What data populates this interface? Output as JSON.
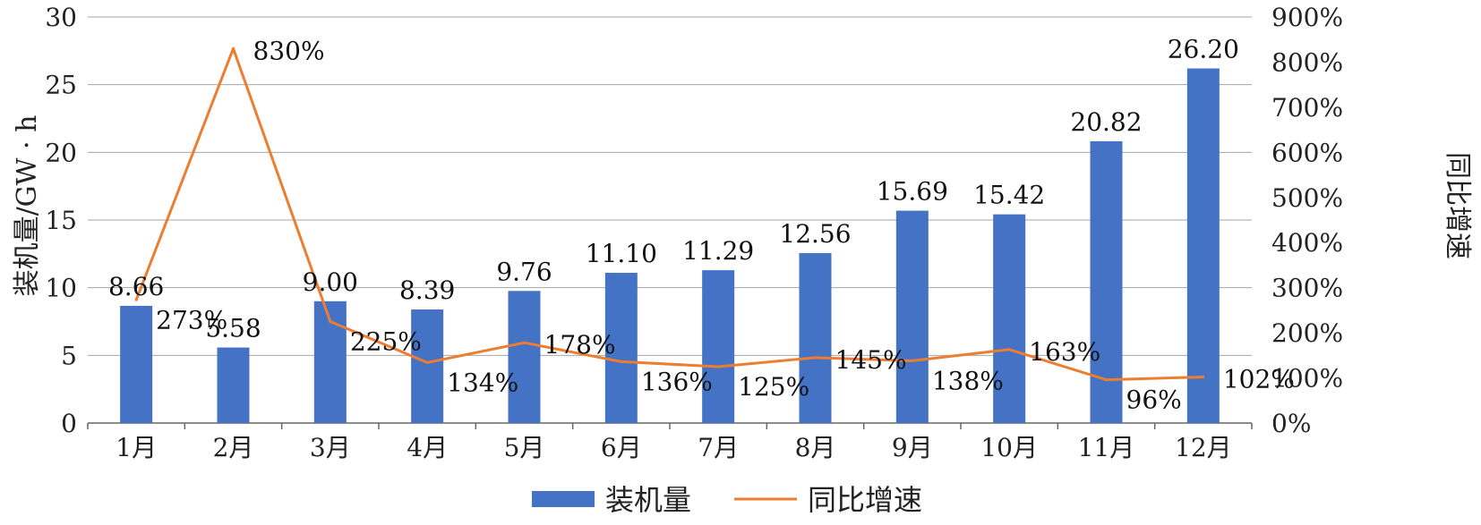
{
  "chart_data": {
    "type": "bar",
    "categories": [
      "1月",
      "2月",
      "3月",
      "4月",
      "5月",
      "6月",
      "7月",
      "8月",
      "9月",
      "10月",
      "11月",
      "12月"
    ],
    "series": [
      {
        "name": "装机量",
        "type": "bar",
        "axis": "left",
        "color": "#4472C4",
        "values": [
          8.66,
          5.58,
          9.0,
          8.39,
          9.76,
          11.1,
          11.29,
          12.56,
          15.69,
          15.42,
          20.82,
          26.2
        ],
        "labels": [
          "8.66",
          "5.58",
          "9.00",
          "8.39",
          "9.76",
          "11.10",
          "11.29",
          "12.56",
          "15.69",
          "15.42",
          "20.82",
          "26.20"
        ]
      },
      {
        "name": "同比增速",
        "type": "line",
        "axis": "right",
        "color": "#ED7D31",
        "values": [
          273,
          830,
          225,
          134,
          178,
          136,
          125,
          145,
          138,
          163,
          96,
          102
        ],
        "labels": [
          "273%",
          "830%",
          "225%",
          "134%",
          "178%",
          "136%",
          "125%",
          "145%",
          "138%",
          "163%",
          "96%",
          "102%"
        ]
      }
    ],
    "ylabel": "装机量/GW · h",
    "ylabel_right": "同比增速",
    "ylim": [
      0,
      30
    ],
    "y_ticks": [
      "0",
      "5",
      "10",
      "15",
      "20",
      "25",
      "30"
    ],
    "ylim_right": [
      0,
      900
    ],
    "y_ticks_right": [
      "0%",
      "100%",
      "200%",
      "300%",
      "400%",
      "500%",
      "600%",
      "700%",
      "800%",
      "900%"
    ],
    "grid": true,
    "legend_position": "bottom-center"
  }
}
